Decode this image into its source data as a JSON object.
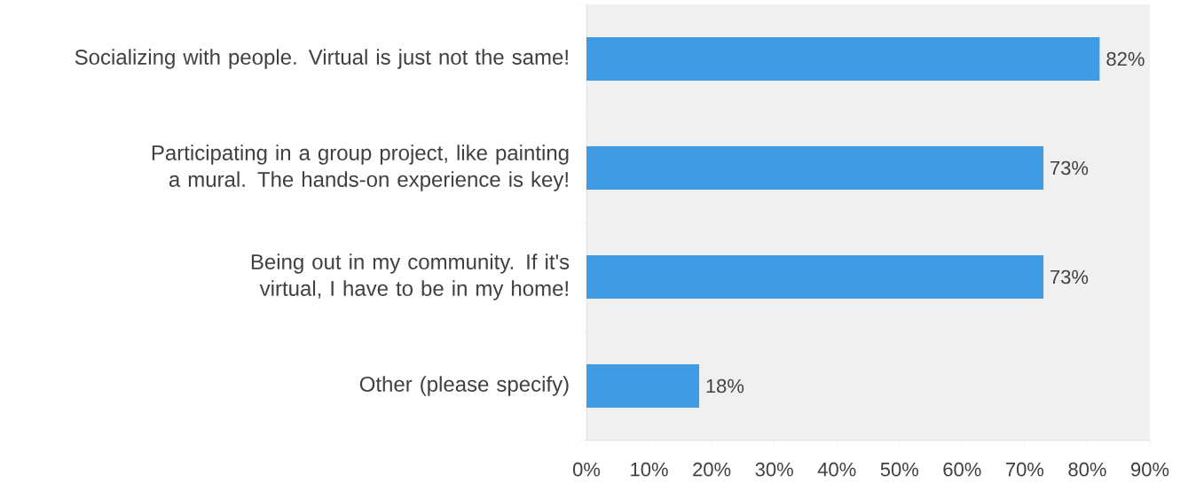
{
  "chart_data": {
    "type": "bar",
    "orientation": "horizontal",
    "categories": [
      "Socializing with people. Virtual is just not the same!",
      "Participating in a group project, like painting a mural. The hands-on experience is key!",
      "Being out in my community. If it's virtual, I have to be in my home!",
      "Other (please specify)"
    ],
    "values": [
      82,
      73,
      73,
      18
    ],
    "color": "#3f9be3",
    "value_labels": [
      "82%",
      "73%",
      "73%",
      "18%"
    ],
    "xlim": [
      0,
      90
    ],
    "xticks": [
      {
        "value": 0,
        "label": "0%"
      },
      {
        "value": 10,
        "label": "10%"
      },
      {
        "value": 20,
        "label": "20%"
      },
      {
        "value": 30,
        "label": "30%"
      },
      {
        "value": 40,
        "label": "40%"
      },
      {
        "value": 50,
        "label": "50%"
      },
      {
        "value": 60,
        "label": "60%"
      },
      {
        "value": 70,
        "label": "70%"
      },
      {
        "value": 80,
        "label": "80%"
      },
      {
        "value": 90,
        "label": "90%"
      }
    ],
    "grid": false
  }
}
